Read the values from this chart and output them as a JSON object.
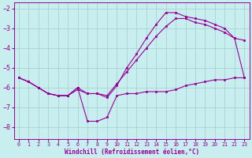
{
  "xlabel": "Windchill (Refroidissement éolien,°C)",
  "bg_color": "#c8eef0",
  "grid_color": "#a0cfc8",
  "line_color": "#990099",
  "xlim": [
    -0.5,
    23.5
  ],
  "ylim": [
    -8.6,
    -1.7
  ],
  "yticks": [
    -8,
    -7,
    -6,
    -5,
    -4,
    -3,
    -2
  ],
  "xticks": [
    0,
    1,
    2,
    3,
    4,
    5,
    6,
    7,
    8,
    9,
    10,
    11,
    12,
    13,
    14,
    15,
    16,
    17,
    18,
    19,
    20,
    21,
    22,
    23
  ],
  "curve1_x": [
    0,
    1,
    2,
    3,
    4,
    5,
    6,
    7,
    8,
    9,
    10,
    11,
    12,
    13,
    14,
    15,
    16,
    17,
    18,
    19,
    20,
    21,
    22,
    23
  ],
  "curve1_y": [
    -5.5,
    -5.7,
    -6.0,
    -6.3,
    -6.4,
    -6.4,
    -6.0,
    -7.7,
    -7.7,
    -7.5,
    -6.4,
    -6.3,
    -6.3,
    -6.2,
    -6.2,
    -6.2,
    -6.1,
    -5.9,
    -5.8,
    -5.7,
    -5.6,
    -5.6,
    -5.5,
    -5.5
  ],
  "curve2_x": [
    0,
    1,
    2,
    3,
    4,
    5,
    6,
    7,
    8,
    9,
    10,
    11,
    12,
    13,
    14,
    15,
    16,
    17,
    18,
    19,
    20,
    21,
    22,
    23
  ],
  "curve2_y": [
    -5.5,
    -5.7,
    -6.0,
    -6.3,
    -6.4,
    -6.4,
    -6.0,
    -6.3,
    -6.3,
    -6.5,
    -5.9,
    -5.0,
    -4.3,
    -3.5,
    -2.8,
    -2.2,
    -2.2,
    -2.4,
    -2.5,
    -2.6,
    -2.8,
    -3.0,
    -3.5,
    -5.5
  ],
  "curve3_x": [
    0,
    1,
    2,
    3,
    4,
    5,
    6,
    7,
    8,
    9,
    10,
    11,
    12,
    13,
    14,
    15,
    16,
    17,
    18,
    19,
    20,
    21,
    22,
    23
  ],
  "curve3_y": [
    -5.5,
    -5.7,
    -6.0,
    -6.3,
    -6.4,
    -6.4,
    -6.1,
    -6.3,
    -6.3,
    -6.4,
    -5.8,
    -5.2,
    -4.6,
    -4.0,
    -3.4,
    -2.9,
    -2.5,
    -2.5,
    -2.7,
    -2.8,
    -3.0,
    -3.2,
    -3.5,
    -3.6
  ]
}
